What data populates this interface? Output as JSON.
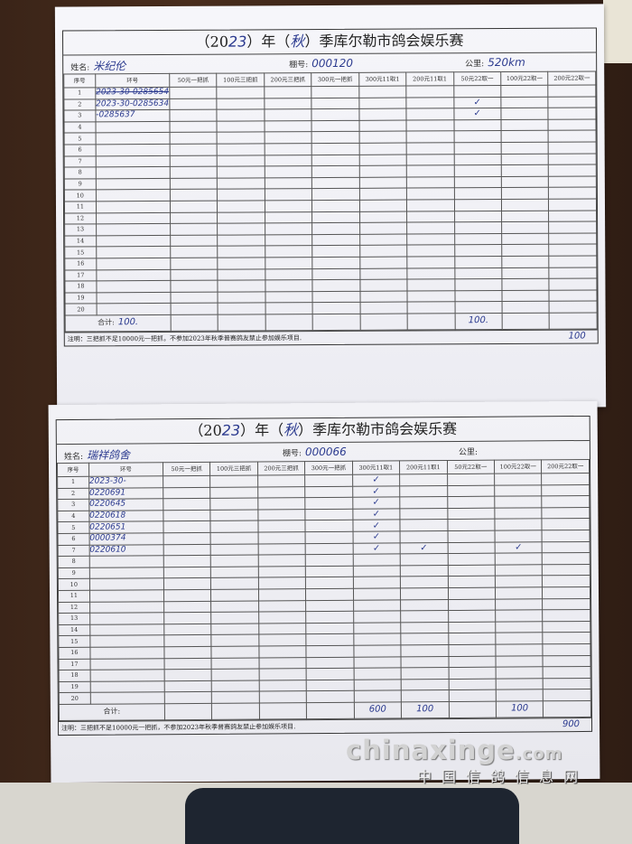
{
  "columns": [
    "序号",
    "环号",
    "50元一把抓",
    "100元三把抓",
    "200元三把抓",
    "300元一把抓",
    "300元11取1",
    "200元11取1",
    "50元22取一",
    "100元22取一",
    "200元22取一"
  ],
  "row_count": 20,
  "total_label": "合计:",
  "forms": [
    {
      "title_prefix": "（20",
      "year_hand": "23",
      "title_mid": "）年（",
      "season_hand": "秋",
      "title_suffix": "）季库尔勒市鸽会娱乐赛",
      "name_label": "姓名:",
      "name_value": "米纪伦",
      "loft_label": "棚号:",
      "loft_value": "000120",
      "distance_label": "公里:",
      "distance_value": "520km",
      "rows": [
        {
          "ring": "2023-30-0285654",
          "crossed": true,
          "checks": []
        },
        {
          "ring": "2023-30-0285634",
          "crossed": false,
          "checks": [
            8
          ]
        },
        {
          "ring": "-0285637",
          "crossed": false,
          "checks": [
            8
          ]
        }
      ],
      "totals": {
        "1": "100.",
        "8": "100."
      },
      "note": "注明：三把抓不足10000元一把抓，不参加2023年秋季普赛鸽友禁止参加娱乐项目.",
      "grand_total": "100"
    },
    {
      "title_prefix": "（20",
      "year_hand": "23",
      "title_mid": "）年（",
      "season_hand": "秋",
      "title_suffix": "）季库尔勒市鸽会娱乐赛",
      "name_label": "姓名:",
      "name_value": "瑞祥鸽舍",
      "loft_label": "棚号:",
      "loft_value": "000066",
      "distance_label": "公里:",
      "distance_value": "",
      "rows": [
        {
          "ring": "2023-30-",
          "crossed": false,
          "checks": [
            6
          ]
        },
        {
          "ring": "0220691",
          "crossed": false,
          "checks": [
            6
          ]
        },
        {
          "ring": "0220645",
          "crossed": false,
          "checks": [
            6
          ]
        },
        {
          "ring": "0220618",
          "crossed": false,
          "checks": [
            6
          ]
        },
        {
          "ring": "0220651",
          "crossed": false,
          "checks": [
            6
          ]
        },
        {
          "ring": "0000374",
          "crossed": false,
          "checks": [
            6
          ]
        },
        {
          "ring": "0220610",
          "crossed": false,
          "checks": [
            6,
            7,
            9
          ]
        }
      ],
      "totals": {
        "6": "600",
        "7": "100",
        "9": "100"
      },
      "note": "注明：三把抓不足10000元一把抓，不参加2023年秋季普赛鸽友禁止参加娱乐项目.",
      "grand_total": "900"
    }
  ],
  "check_mark": "✓",
  "watermark": {
    "main": "chinaxinge",
    "suffix": ".com",
    "sub": "中国信鸽信息网"
  },
  "colors": {
    "ink": "#2b3a8f",
    "paper": "#f4f4f8",
    "table": "#dcdcdc"
  }
}
